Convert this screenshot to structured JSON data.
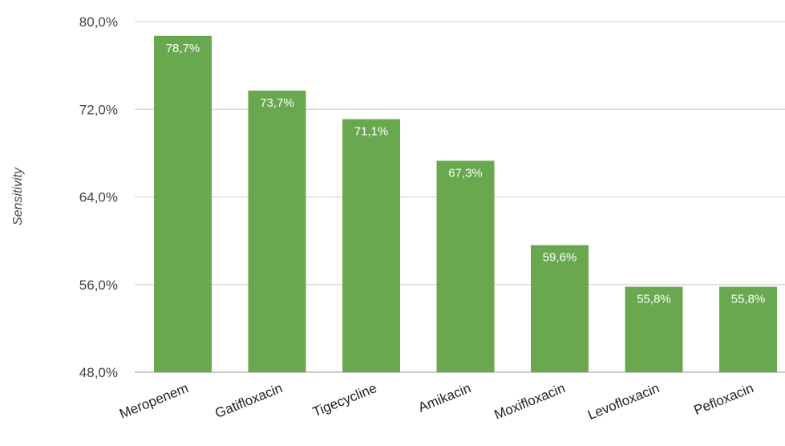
{
  "chart_data": {
    "type": "bar",
    "title": "",
    "xlabel": "",
    "ylabel": "Sensitivity",
    "ylim": [
      48.0,
      80.0
    ],
    "yticks": [
      "80,0%",
      "72,0%",
      "64,0%",
      "56,0%",
      "48,0%"
    ],
    "ytick_values": [
      80.0,
      72.0,
      64.0,
      56.0,
      48.0
    ],
    "grid": true,
    "legend": "none",
    "bar_color": "#6aa84f",
    "categories": [
      "Meropenem",
      "Gatifloxacin",
      "Tigecycline",
      "Amikacin",
      "Moxifloxacin",
      "Levofloxacin",
      "Pefloxacin"
    ],
    "values": [
      78.7,
      73.7,
      71.1,
      67.3,
      59.6,
      55.8,
      55.8
    ],
    "data_labels": [
      "78,7%",
      "73,7%",
      "71,1%",
      "67,3%",
      "59,6%",
      "55,8%",
      "55,8%"
    ]
  }
}
